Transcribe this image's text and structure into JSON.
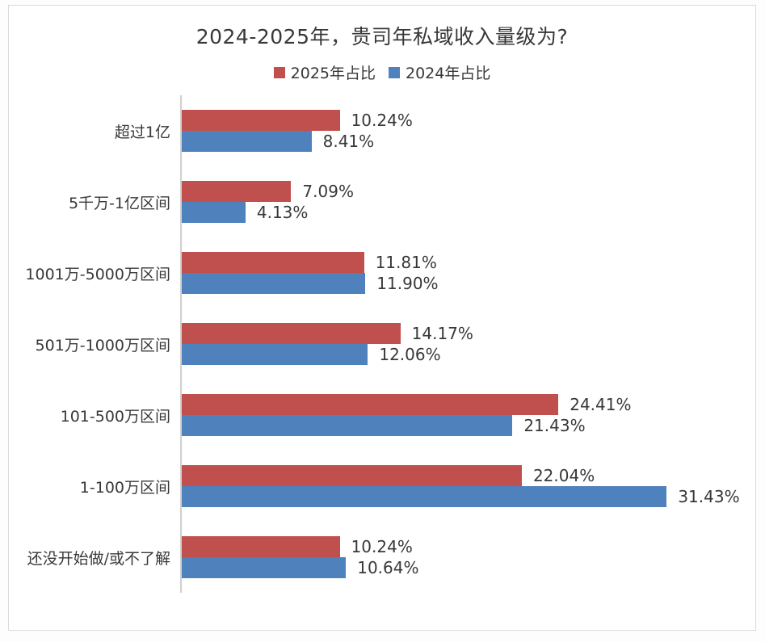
{
  "chart_data": {
    "type": "bar",
    "orientation": "horizontal",
    "title": "2024-2025年，贵司年私域收入量级为?",
    "categories": [
      "超过1亿",
      "5千万-1亿区间",
      "1001万-5000万区间",
      "501万-1000万区间",
      "101-500万区间",
      "1-100万区间",
      "还没开始做/或不了解"
    ],
    "series": [
      {
        "name": "2025年占比",
        "color": "#c0504d",
        "values": [
          10.24,
          7.09,
          11.81,
          14.17,
          24.41,
          22.04,
          10.24
        ],
        "labels": [
          "10.24%",
          "7.09%",
          "11.81%",
          "14.17%",
          "24.41%",
          "22.04%",
          "10.24%"
        ]
      },
      {
        "name": "2024年占比",
        "color": "#4f81bd",
        "values": [
          8.41,
          4.13,
          11.9,
          12.06,
          21.43,
          31.43,
          10.64
        ],
        "labels": [
          "8.41%",
          "4.13%",
          "11.90%",
          "12.06%",
          "21.43%",
          "31.43%",
          "10.64%"
        ]
      }
    ],
    "xlim": [
      0,
      34
    ],
    "value_unit": "%",
    "legend_position": "top",
    "grid": false,
    "axis_line_color": "#d2d0ce",
    "text_color": "#383838"
  }
}
